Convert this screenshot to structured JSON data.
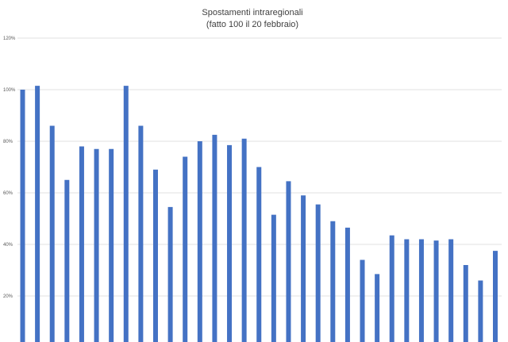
{
  "chart_data": {
    "type": "bar",
    "title": "Spostamenti intraregionali",
    "subtitle": "(fatto 100 il 20 febbraio)",
    "xlabel": "",
    "ylabel": "",
    "ylim": [
      0,
      120
    ],
    "ytick_values": [
      20,
      40,
      60,
      80,
      100,
      120
    ],
    "ytick_labels": [
      "20%",
      "40%",
      "60%",
      "80%",
      "100%",
      "120%"
    ],
    "grid": true,
    "legend": "none",
    "bar_color": "#4472C4",
    "grid_color": "#d9d9d9",
    "values": [
      100,
      101.5,
      86,
      65,
      78,
      77,
      77,
      101.5,
      86,
      69,
      54.5,
      74,
      80,
      82.5,
      78.5,
      81,
      70,
      51.5,
      64.5,
      59,
      55.5,
      49,
      46.5,
      34,
      28.5,
      43.5,
      42,
      42,
      41.5,
      42,
      32,
      26,
      37.5
    ]
  }
}
